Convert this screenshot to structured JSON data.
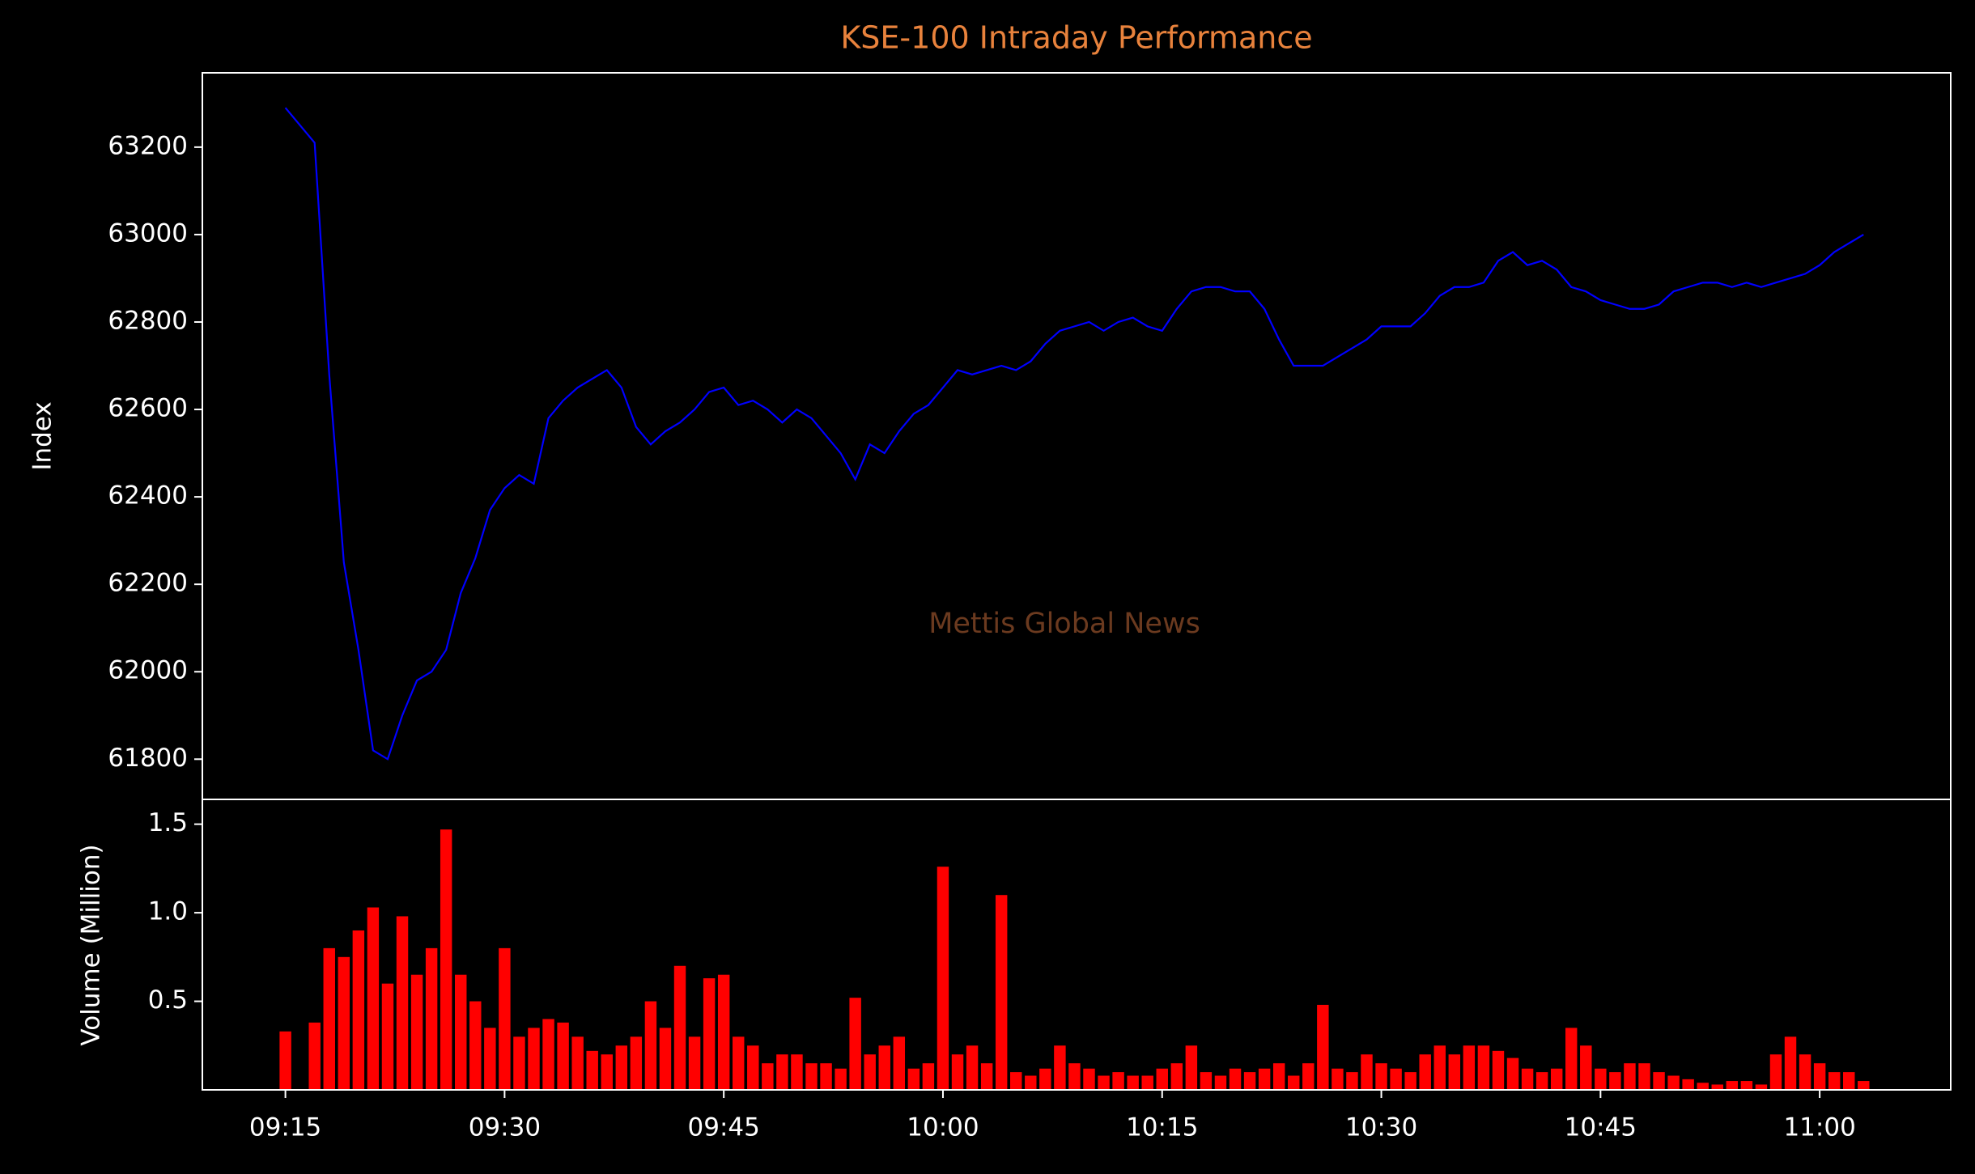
{
  "chart_data": [
    {
      "type": "line",
      "title": "KSE-100 Intraday Performance",
      "ylabel": "Index",
      "annotation": "Mettis Global News",
      "color": "#0000ff",
      "x": [
        "09:15",
        "09:16",
        "09:17",
        "09:18",
        "09:19",
        "09:20",
        "09:21",
        "09:22",
        "09:23",
        "09:24",
        "09:25",
        "09:26",
        "09:27",
        "09:28",
        "09:29",
        "09:30",
        "09:31",
        "09:32",
        "09:33",
        "09:34",
        "09:35",
        "09:36",
        "09:37",
        "09:38",
        "09:39",
        "09:40",
        "09:41",
        "09:42",
        "09:43",
        "09:44",
        "09:45",
        "09:46",
        "09:47",
        "09:48",
        "09:49",
        "09:50",
        "09:51",
        "09:52",
        "09:53",
        "09:54",
        "09:55",
        "09:56",
        "09:57",
        "09:58",
        "09:59",
        "10:00",
        "10:01",
        "10:02",
        "10:03",
        "10:04",
        "10:05",
        "10:06",
        "10:07",
        "10:08",
        "10:09",
        "10:10",
        "10:11",
        "10:12",
        "10:13",
        "10:14",
        "10:15",
        "10:16",
        "10:17",
        "10:18",
        "10:19",
        "10:20",
        "10:21",
        "10:22",
        "10:23",
        "10:24",
        "10:25",
        "10:26",
        "10:27",
        "10:28",
        "10:29",
        "10:30",
        "10:31",
        "10:32",
        "10:33",
        "10:34",
        "10:35",
        "10:36",
        "10:37",
        "10:38",
        "10:39",
        "10:40",
        "10:41",
        "10:42",
        "10:43",
        "10:44",
        "10:45",
        "10:46",
        "10:47",
        "10:48",
        "10:49",
        "10:50",
        "10:51",
        "10:52",
        "10:53",
        "10:54",
        "10:55",
        "10:56",
        "10:57",
        "10:58",
        "10:59",
        "11:00",
        "11:01",
        "11:02",
        "11:03"
      ],
      "values": [
        63290,
        63250,
        63210,
        62680,
        62250,
        62050,
        61820,
        61800,
        61900,
        61980,
        62000,
        62050,
        62180,
        62260,
        62370,
        62420,
        62450,
        62430,
        62580,
        62620,
        62650,
        62670,
        62690,
        62650,
        62560,
        62520,
        62550,
        62570,
        62600,
        62640,
        62650,
        62610,
        62620,
        62600,
        62570,
        62600,
        62580,
        62540,
        62500,
        62440,
        62520,
        62500,
        62550,
        62590,
        62610,
        62650,
        62690,
        62680,
        62690,
        62700,
        62690,
        62710,
        62750,
        62780,
        62790,
        62800,
        62780,
        62800,
        62810,
        62790,
        62780,
        62830,
        62870,
        62880,
        62880,
        62870,
        62870,
        62830,
        62760,
        62700,
        62700,
        62700,
        62720,
        62740,
        62760,
        62790,
        62790,
        62790,
        62820,
        62860,
        62880,
        62880,
        62890,
        62940,
        62960,
        62930,
        62940,
        62920,
        62880,
        62870,
        62850,
        62840,
        62830,
        62830,
        62840,
        62870,
        62880,
        62890,
        62890,
        62880,
        62890,
        62880,
        62890,
        62900,
        62910,
        62930,
        62960,
        62980,
        63000
      ],
      "xlim": [
        "09:09:19",
        "11:08:58"
      ],
      "ylim": [
        61708,
        63370
      ],
      "yticks": [
        61800,
        62000,
        62200,
        62400,
        62600,
        62800,
        63000,
        63200
      ]
    },
    {
      "type": "bar",
      "ylabel": "Volume (Million)",
      "color": "#ff0000",
      "x": [
        "09:15",
        "09:16",
        "09:17",
        "09:18",
        "09:19",
        "09:20",
        "09:21",
        "09:22",
        "09:23",
        "09:24",
        "09:25",
        "09:26",
        "09:27",
        "09:28",
        "09:29",
        "09:30",
        "09:31",
        "09:32",
        "09:33",
        "09:34",
        "09:35",
        "09:36",
        "09:37",
        "09:38",
        "09:39",
        "09:40",
        "09:41",
        "09:42",
        "09:43",
        "09:44",
        "09:45",
        "09:46",
        "09:47",
        "09:48",
        "09:49",
        "09:50",
        "09:51",
        "09:52",
        "09:53",
        "09:54",
        "09:55",
        "09:56",
        "09:57",
        "09:58",
        "09:59",
        "10:00",
        "10:01",
        "10:02",
        "10:03",
        "10:04",
        "10:05",
        "10:06",
        "10:07",
        "10:08",
        "10:09",
        "10:10",
        "10:11",
        "10:12",
        "10:13",
        "10:14",
        "10:15",
        "10:16",
        "10:17",
        "10:18",
        "10:19",
        "10:20",
        "10:21",
        "10:22",
        "10:23",
        "10:24",
        "10:25",
        "10:26",
        "10:27",
        "10:28",
        "10:29",
        "10:30",
        "10:31",
        "10:32",
        "10:33",
        "10:34",
        "10:35",
        "10:36",
        "10:37",
        "10:38",
        "10:39",
        "10:40",
        "10:41",
        "10:42",
        "10:43",
        "10:44",
        "10:45",
        "10:46",
        "10:47",
        "10:48",
        "10:49",
        "10:50",
        "10:51",
        "10:52",
        "10:53",
        "10:54",
        "10:55",
        "10:56",
        "10:57",
        "10:58",
        "10:59",
        "11:00",
        "11:01",
        "11:02",
        "11:03"
      ],
      "values": [
        0.33,
        0,
        0.38,
        0.8,
        0.75,
        0.9,
        1.03,
        0.6,
        0.98,
        0.65,
        0.8,
        1.47,
        0.65,
        0.5,
        0.35,
        0.8,
        0.3,
        0.35,
        0.4,
        0.38,
        0.3,
        0.22,
        0.2,
        0.25,
        0.3,
        0.5,
        0.35,
        0.7,
        0.3,
        0.63,
        0.65,
        0.3,
        0.25,
        0.15,
        0.2,
        0.2,
        0.15,
        0.15,
        0.12,
        0.52,
        0.2,
        0.25,
        0.3,
        0.12,
        0.15,
        1.26,
        0.2,
        0.25,
        0.15,
        1.1,
        0.1,
        0.08,
        0.12,
        0.25,
        0.15,
        0.12,
        0.08,
        0.1,
        0.08,
        0.08,
        0.12,
        0.15,
        0.25,
        0.1,
        0.08,
        0.12,
        0.1,
        0.12,
        0.15,
        0.08,
        0.15,
        0.48,
        0.12,
        0.1,
        0.2,
        0.15,
        0.12,
        0.1,
        0.2,
        0.25,
        0.2,
        0.25,
        0.25,
        0.22,
        0.18,
        0.12,
        0.1,
        0.12,
        0.35,
        0.25,
        0.12,
        0.1,
        0.15,
        0.15,
        0.1,
        0.08,
        0.06,
        0.04,
        0.03,
        0.05,
        0.05,
        0.03,
        0.2,
        0.3,
        0.2,
        0.15,
        0.1,
        0.1,
        0.05
      ],
      "xlim": [
        "09:09:19",
        "11:08:58"
      ],
      "xticks": [
        "09:15",
        "09:30",
        "09:45",
        "10:00",
        "10:15",
        "10:30",
        "10:45",
        "11:00"
      ],
      "ylim": [
        0,
        1.64
      ],
      "yticks": [
        0.5,
        {
          "value": 1,
          "label": "1.0"
        },
        1.5
      ]
    }
  ]
}
